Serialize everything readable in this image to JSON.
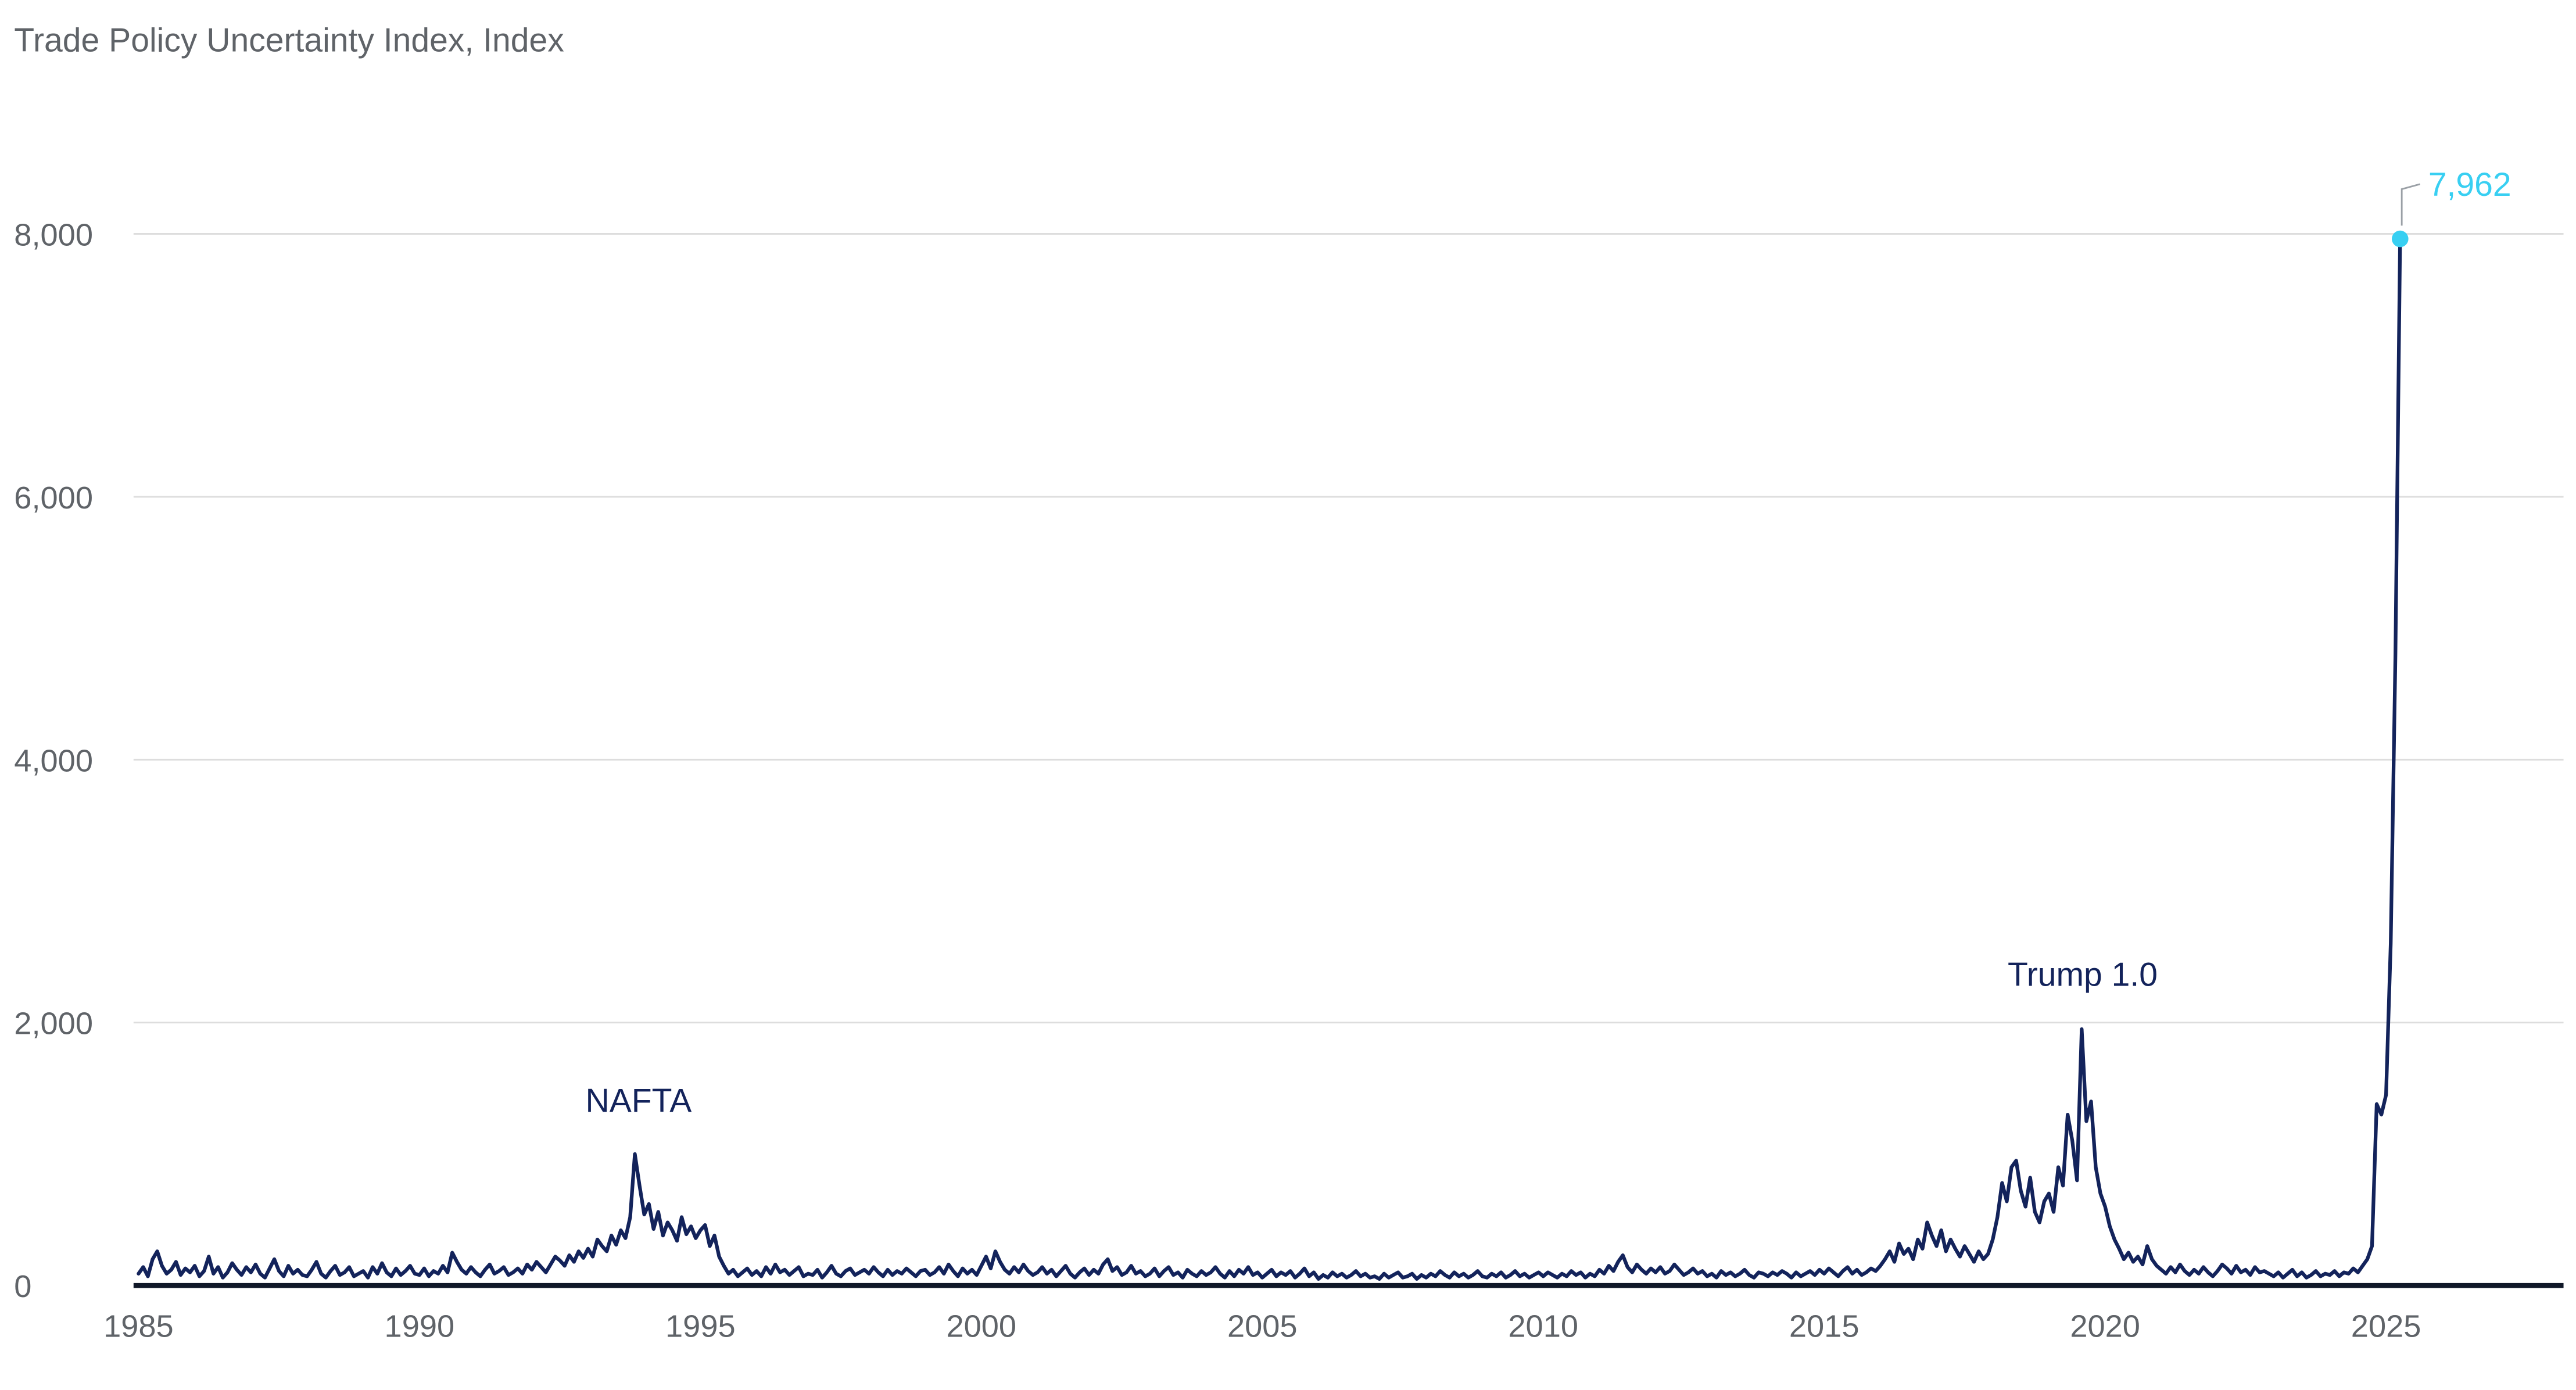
{
  "chart_data": {
    "type": "line",
    "title": "Trade Policy Uncertainty Index, Index",
    "series_name": "Trade Policy Uncertainty Index",
    "xlabel": "",
    "ylabel": "Index",
    "grid": "horizontal",
    "legend": "none",
    "ylim": [
      0,
      8000
    ],
    "xlim": [
      1985,
      2028.2
    ],
    "x_start_year": 1985,
    "x_step_months": 1,
    "yticks": [
      0,
      2000,
      4000,
      6000,
      8000
    ],
    "ytick_labels": [
      "0",
      "2,000",
      "4,000",
      "6,000",
      "8,000"
    ],
    "xticks": [
      1985,
      1990,
      1995,
      2000,
      2005,
      2010,
      2015,
      2020,
      2025
    ],
    "line_color": "#13235b",
    "accent_color": "#38cff2",
    "grid_color": "#dddddd",
    "axis_color": "#101828",
    "tick_label_color": "#5f6368",
    "title_color": "#5f6368",
    "annotations": [
      {
        "label": "NAFTA",
        "year": 1993.9,
        "value": 1000,
        "text_y_value": 1320
      },
      {
        "label": "Trump 1.0",
        "year": 2019.6,
        "value": 1950,
        "text_y_value": 2280
      }
    ],
    "endpoint": {
      "label": "7,962",
      "value": 7962,
      "year": 2025.25
    },
    "values": [
      90,
      140,
      70,
      200,
      260,
      150,
      90,
      120,
      180,
      80,
      130,
      100,
      150,
      70,
      110,
      220,
      90,
      140,
      60,
      100,
      170,
      120,
      80,
      140,
      100,
      160,
      90,
      60,
      130,
      200,
      110,
      70,
      150,
      90,
      120,
      80,
      70,
      120,
      180,
      90,
      60,
      110,
      150,
      80,
      100,
      140,
      70,
      90,
      110,
      60,
      140,
      90,
      170,
      100,
      70,
      130,
      80,
      110,
      150,
      90,
      80,
      130,
      70,
      110,
      90,
      150,
      100,
      250,
      180,
      120,
      90,
      140,
      100,
      70,
      120,
      160,
      90,
      110,
      140,
      80,
      100,
      130,
      90,
      160,
      120,
      180,
      140,
      100,
      160,
      220,
      190,
      150,
      230,
      180,
      260,
      210,
      280,
      220,
      350,
      300,
      260,
      380,
      310,
      420,
      360,
      520,
      1000,
      760,
      540,
      620,
      430,
      560,
      380,
      480,
      420,
      340,
      520,
      390,
      450,
      360,
      420,
      460,
      300,
      380,
      220,
      150,
      90,
      120,
      70,
      100,
      130,
      80,
      110,
      70,
      140,
      90,
      160,
      100,
      120,
      80,
      110,
      140,
      70,
      90,
      80,
      120,
      60,
      100,
      150,
      90,
      70,
      110,
      130,
      80,
      100,
      120,
      90,
      140,
      100,
      70,
      120,
      80,
      110,
      90,
      130,
      100,
      70,
      110,
      120,
      80,
      100,
      140,
      90,
      160,
      110,
      70,
      130,
      90,
      120,
      80,
      150,
      220,
      130,
      260,
      180,
      120,
      90,
      140,
      100,
      160,
      110,
      80,
      100,
      140,
      90,
      120,
      70,
      110,
      150,
      90,
      60,
      100,
      130,
      80,
      120,
      90,
      160,
      200,
      110,
      140,
      80,
      100,
      150,
      90,
      110,
      70,
      90,
      130,
      70,
      110,
      140,
      80,
      100,
      60,
      120,
      90,
      70,
      110,
      80,
      100,
      140,
      90,
      60,
      110,
      70,
      120,
      90,
      140,
      80,
      100,
      60,
      90,
      120,
      70,
      100,
      80,
      110,
      60,
      90,
      130,
      70,
      100,
      50,
      80,
      60,
      100,
      70,
      90,
      60,
      80,
      110,
      70,
      90,
      60,
      70,
      50,
      90,
      60,
      80,
      100,
      60,
      70,
      90,
      50,
      80,
      60,
      90,
      70,
      110,
      80,
      60,
      100,
      70,
      90,
      60,
      80,
      110,
      70,
      60,
      90,
      70,
      100,
      60,
      80,
      110,
      70,
      90,
      60,
      80,
      100,
      70,
      100,
      80,
      60,
      90,
      70,
      110,
      80,
      100,
      60,
      90,
      70,
      120,
      90,
      150,
      110,
      180,
      230,
      140,
      100,
      160,
      120,
      90,
      130,
      100,
      140,
      90,
      110,
      160,
      120,
      80,
      100,
      130,
      90,
      110,
      70,
      90,
      60,
      110,
      80,
      100,
      70,
      90,
      120,
      80,
      60,
      100,
      90,
      70,
      100,
      80,
      110,
      90,
      60,
      100,
      70,
      90,
      110,
      80,
      120,
      90,
      130,
      100,
      70,
      110,
      140,
      90,
      120,
      80,
      100,
      130,
      110,
      150,
      200,
      260,
      180,
      320,
      240,
      280,
      200,
      350,
      280,
      480,
      380,
      300,
      420,
      260,
      350,
      280,
      220,
      300,
      240,
      180,
      260,
      200,
      240,
      350,
      520,
      780,
      640,
      900,
      950,
      720,
      600,
      820,
      560,
      480,
      640,
      700,
      560,
      900,
      760,
      1300,
      1100,
      800,
      1950,
      1250,
      1400,
      900,
      700,
      600,
      450,
      350,
      280,
      200,
      250,
      180,
      220,
      160,
      300,
      200,
      150,
      120,
      90,
      140,
      100,
      160,
      110,
      80,
      120,
      90,
      140,
      100,
      70,
      110,
      160,
      130,
      90,
      150,
      100,
      120,
      80,
      140,
      100,
      110,
      90,
      70,
      100,
      60,
      90,
      120,
      70,
      100,
      60,
      80,
      110,
      70,
      90,
      80,
      110,
      70,
      100,
      90,
      130,
      100,
      150,
      200,
      300,
      1380,
      1300,
      1450,
      2600,
      4800,
      7962
    ]
  }
}
